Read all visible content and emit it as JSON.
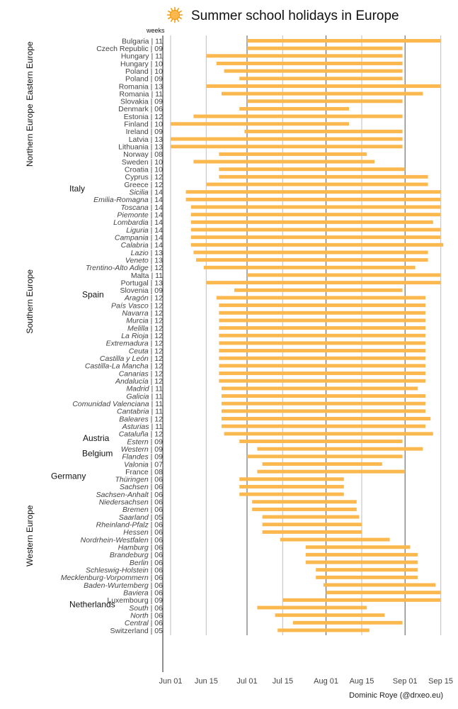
{
  "chart_data": {
    "type": "range-bar",
    "title": "Summer school holidays in Europe",
    "caption": "Dominic Roye (@drxeo.eu)",
    "weeks_label": "weeks",
    "x_axis": {
      "domain_start": "May 31",
      "domain_end": "Sep 18",
      "ticks": [
        "Jun 01",
        "Jun 15",
        "Jul 01",
        "Jul 15",
        "Aug 01",
        "Aug 15",
        "Sep 01",
        "Sep 15"
      ],
      "tick_days": [
        1,
        15,
        31,
        45,
        62,
        76,
        93,
        107
      ],
      "day_offset_origin": "Jun 01 = day 1"
    },
    "colors": {
      "bar": "#fbb84f",
      "sun": "#fbb84f",
      "sun_stroke": "#f39c12",
      "grid_major": "#555555",
      "grid_minor": "#cccccc"
    },
    "rows": [
      {
        "region": "Eastern Europe",
        "group": "",
        "name": "Bulgaria",
        "weeks": "11",
        "start": 31,
        "end": 107
      },
      {
        "region": "Eastern Europe",
        "group": "",
        "name": "Czech Republic",
        "weeks": "09",
        "start": 31,
        "end": 92
      },
      {
        "region": "Eastern Europe",
        "group": "",
        "name": "Hungary",
        "weeks": "11",
        "start": 15,
        "end": 92
      },
      {
        "region": "Eastern Europe",
        "group": "",
        "name": "Hungary",
        "weeks": "10",
        "start": 19,
        "end": 92
      },
      {
        "region": "Eastern Europe",
        "group": "",
        "name": "Poland",
        "weeks": "10",
        "start": 22,
        "end": 92
      },
      {
        "region": "Eastern Europe",
        "group": "",
        "name": "Poland",
        "weeks": "09",
        "start": 28,
        "end": 92
      },
      {
        "region": "Eastern Europe",
        "group": "",
        "name": "Romania",
        "weeks": "13",
        "start": 15,
        "end": 107
      },
      {
        "region": "Eastern Europe",
        "group": "",
        "name": "Romania",
        "weeks": "11",
        "start": 21,
        "end": 100
      },
      {
        "region": "Eastern Europe",
        "group": "",
        "name": "Slovakia",
        "weeks": "09",
        "start": 31,
        "end": 92
      },
      {
        "region": "Northern Europe",
        "group": "",
        "name": "Denmark",
        "weeks": "06",
        "start": 28,
        "end": 71
      },
      {
        "region": "Northern Europe",
        "group": "",
        "name": "Estonia",
        "weeks": "12",
        "start": 10,
        "end": 92
      },
      {
        "region": "Northern Europe",
        "group": "",
        "name": "Finland",
        "weeks": "10",
        "start": 1,
        "end": 71
      },
      {
        "region": "Northern Europe",
        "group": "",
        "name": "Ireland",
        "weeks": "09",
        "start": 30,
        "end": 92
      },
      {
        "region": "Northern Europe",
        "group": "",
        "name": "Latvia",
        "weeks": "13",
        "start": 1,
        "end": 92
      },
      {
        "region": "Northern Europe",
        "group": "",
        "name": "Lithuania",
        "weeks": "13",
        "start": 1,
        "end": 92
      },
      {
        "region": "Northern Europe",
        "group": "",
        "name": "Norway",
        "weeks": "08",
        "start": 20,
        "end": 78
      },
      {
        "region": "Northern Europe",
        "group": "",
        "name": "Sweden",
        "weeks": "10",
        "start": 10,
        "end": 81
      },
      {
        "region": "Southern Europe",
        "group": "",
        "name": "Croatia",
        "weeks": "10",
        "start": 20,
        "end": 93
      },
      {
        "region": "Southern Europe",
        "group": "",
        "name": "Cyprus",
        "weeks": "12",
        "start": 20,
        "end": 102
      },
      {
        "region": "Southern Europe",
        "group": "",
        "name": "Greece",
        "weeks": "12",
        "start": 15,
        "end": 102
      },
      {
        "region": "Southern Europe",
        "group": "Italy",
        "name": "Sicilia",
        "weeks": "14",
        "start": 7,
        "end": 107
      },
      {
        "region": "Southern Europe",
        "group": "Italy",
        "name": "Emilia-Romagna",
        "weeks": "14",
        "start": 7,
        "end": 107
      },
      {
        "region": "Southern Europe",
        "group": "Italy",
        "name": "Toscana",
        "weeks": "14",
        "start": 9,
        "end": 107
      },
      {
        "region": "Southern Europe",
        "group": "Italy",
        "name": "Piemonte",
        "weeks": "14",
        "start": 9,
        "end": 107
      },
      {
        "region": "Southern Europe",
        "group": "Italy",
        "name": "Lombardia",
        "weeks": "14",
        "start": 9,
        "end": 104
      },
      {
        "region": "Southern Europe",
        "group": "Italy",
        "name": "Liguria",
        "weeks": "14",
        "start": 9,
        "end": 107
      },
      {
        "region": "Southern Europe",
        "group": "Italy",
        "name": "Campania",
        "weeks": "14",
        "start": 9,
        "end": 107
      },
      {
        "region": "Southern Europe",
        "group": "Italy",
        "name": "Calabria",
        "weeks": "14",
        "start": 9,
        "end": 108
      },
      {
        "region": "Southern Europe",
        "group": "Italy",
        "name": "Lazio",
        "weeks": "13",
        "start": 10,
        "end": 102
      },
      {
        "region": "Southern Europe",
        "group": "Italy",
        "name": "Veneto",
        "weeks": "13",
        "start": 11,
        "end": 102
      },
      {
        "region": "Southern Europe",
        "group": "Italy",
        "name": "Trentino-Alto Adige",
        "weeks": "12",
        "start": 14,
        "end": 97
      },
      {
        "region": "Southern Europe",
        "group": "",
        "name": "Malta",
        "weeks": "11",
        "start": 31,
        "end": 107
      },
      {
        "region": "Southern Europe",
        "group": "",
        "name": "Portugal",
        "weeks": "13",
        "start": 15,
        "end": 107
      },
      {
        "region": "Southern Europe",
        "group": "",
        "name": "Slovenia",
        "weeks": "09",
        "start": 26,
        "end": 92
      },
      {
        "region": "Southern Europe",
        "group": "Spain",
        "name": "Aragón",
        "weeks": "12",
        "start": 19,
        "end": 101
      },
      {
        "region": "Southern Europe",
        "group": "Spain",
        "name": "País Vasco",
        "weeks": "12",
        "start": 20,
        "end": 101
      },
      {
        "region": "Southern Europe",
        "group": "Spain",
        "name": "Navarra",
        "weeks": "12",
        "start": 20,
        "end": 101
      },
      {
        "region": "Southern Europe",
        "group": "Spain",
        "name": "Murcia",
        "weeks": "12",
        "start": 20,
        "end": 101
      },
      {
        "region": "Southern Europe",
        "group": "Spain",
        "name": "Melilla",
        "weeks": "12",
        "start": 20,
        "end": 101
      },
      {
        "region": "Southern Europe",
        "group": "Spain",
        "name": "La Rioja",
        "weeks": "12",
        "start": 20,
        "end": 101
      },
      {
        "region": "Southern Europe",
        "group": "Spain",
        "name": "Extremadura",
        "weeks": "12",
        "start": 20,
        "end": 101
      },
      {
        "region": "Southern Europe",
        "group": "Spain",
        "name": "Ceuta",
        "weeks": "12",
        "start": 20,
        "end": 101
      },
      {
        "region": "Southern Europe",
        "group": "Spain",
        "name": "Castilla y León",
        "weeks": "12",
        "start": 20,
        "end": 101
      },
      {
        "region": "Southern Europe",
        "group": "Spain",
        "name": "Castilla-La Mancha",
        "weeks": "12",
        "start": 20,
        "end": 101
      },
      {
        "region": "Southern Europe",
        "group": "Spain",
        "name": "Canarias",
        "weeks": "12",
        "start": 20,
        "end": 101
      },
      {
        "region": "Southern Europe",
        "group": "Spain",
        "name": "Andalucía",
        "weeks": "12",
        "start": 20,
        "end": 101
      },
      {
        "region": "Southern Europe",
        "group": "Spain",
        "name": "Madrid",
        "weeks": "11",
        "start": 21,
        "end": 98
      },
      {
        "region": "Southern Europe",
        "group": "Spain",
        "name": "Galicia",
        "weeks": "11",
        "start": 21,
        "end": 101
      },
      {
        "region": "Southern Europe",
        "group": "Spain",
        "name": "Comunidad Valenciana",
        "weeks": "11",
        "start": 21,
        "end": 101
      },
      {
        "region": "Southern Europe",
        "group": "Spain",
        "name": "Cantabria",
        "weeks": "11",
        "start": 21,
        "end": 101
      },
      {
        "region": "Southern Europe",
        "group": "Spain",
        "name": "Baleares",
        "weeks": "12",
        "start": 21,
        "end": 103
      },
      {
        "region": "Southern Europe",
        "group": "Spain",
        "name": "Asturias",
        "weeks": "11",
        "start": 21,
        "end": 101
      },
      {
        "region": "Southern Europe",
        "group": "Spain",
        "name": "Cataluña",
        "weeks": "12",
        "start": 22,
        "end": 104
      },
      {
        "region": "Western Europe",
        "group": "Austria",
        "name": "Estern",
        "weeks": "09",
        "start": 28,
        "end": 92
      },
      {
        "region": "Western Europe",
        "group": "Austria",
        "name": "Western",
        "weeks": "09",
        "start": 35,
        "end": 100
      },
      {
        "region": "Western Europe",
        "group": "Belgium",
        "name": "Flandes",
        "weeks": "09",
        "start": 31,
        "end": 92
      },
      {
        "region": "Western Europe",
        "group": "Belgium",
        "name": "Valonia",
        "weeks": "07",
        "start": 37,
        "end": 84
      },
      {
        "region": "Western Europe",
        "group": "",
        "name": "France",
        "weeks": "08",
        "start": 35,
        "end": 93
      },
      {
        "region": "Western Europe",
        "group": "Germany",
        "name": "Thüringen",
        "weeks": "06",
        "start": 28,
        "end": 69
      },
      {
        "region": "Western Europe",
        "group": "Germany",
        "name": "Sachsen",
        "weeks": "06",
        "start": 28,
        "end": 69
      },
      {
        "region": "Western Europe",
        "group": "Germany",
        "name": "Sachsen-Anhalt",
        "weeks": "06",
        "start": 28,
        "end": 69
      },
      {
        "region": "Western Europe",
        "group": "Germany",
        "name": "Niedersachsen",
        "weeks": "06",
        "start": 33,
        "end": 74
      },
      {
        "region": "Western Europe",
        "group": "Germany",
        "name": "Bremen",
        "weeks": "06",
        "start": 33,
        "end": 74
      },
      {
        "region": "Western Europe",
        "group": "Germany",
        "name": "Saarland",
        "weeks": "05",
        "start": 37,
        "end": 75
      },
      {
        "region": "Western Europe",
        "group": "Germany",
        "name": "Rheinland-Pfalz",
        "weeks": "06",
        "start": 37,
        "end": 76
      },
      {
        "region": "Western Europe",
        "group": "Germany",
        "name": "Hessen",
        "weeks": "06",
        "start": 37,
        "end": 76
      },
      {
        "region": "Western Europe",
        "group": "Germany",
        "name": "Nordrhein-Westfalen",
        "weeks": "06",
        "start": 44,
        "end": 87
      },
      {
        "region": "Western Europe",
        "group": "Germany",
        "name": "Hamburg",
        "weeks": "06",
        "start": 54,
        "end": 95
      },
      {
        "region": "Western Europe",
        "group": "Germany",
        "name": "Brandeburg",
        "weeks": "06",
        "start": 54,
        "end": 98
      },
      {
        "region": "Western Europe",
        "group": "Germany",
        "name": "Berlin",
        "weeks": "06",
        "start": 54,
        "end": 98
      },
      {
        "region": "Western Europe",
        "group": "Germany",
        "name": "Schleswig-Holstein",
        "weeks": "06",
        "start": 58,
        "end": 98
      },
      {
        "region": "Western Europe",
        "group": "Germany",
        "name": "Mecklenburg-Vorpommern",
        "weeks": "06",
        "start": 58,
        "end": 98
      },
      {
        "region": "Western Europe",
        "group": "Germany",
        "name": "Baden-Wurtemberg",
        "weeks": "06",
        "start": 61,
        "end": 105
      },
      {
        "region": "Western Europe",
        "group": "Germany",
        "name": "Baviera",
        "weeks": "06",
        "start": 62,
        "end": 107
      },
      {
        "region": "Western Europe",
        "group": "",
        "name": "Luxembourg",
        "weeks": "09",
        "start": 45,
        "end": 107
      },
      {
        "region": "Western Europe",
        "group": "Netherlands",
        "name": "South",
        "weeks": "06",
        "start": 35,
        "end": 78
      },
      {
        "region": "Western Europe",
        "group": "Netherlands",
        "name": "North",
        "weeks": "06",
        "start": 42,
        "end": 85
      },
      {
        "region": "Western Europe",
        "group": "Netherlands",
        "name": "Central",
        "weeks": "06",
        "start": 49,
        "end": 92
      },
      {
        "region": "Western Europe",
        "group": "",
        "name": "Switzerland",
        "weeks": "05",
        "start": 43,
        "end": 79
      }
    ]
  }
}
